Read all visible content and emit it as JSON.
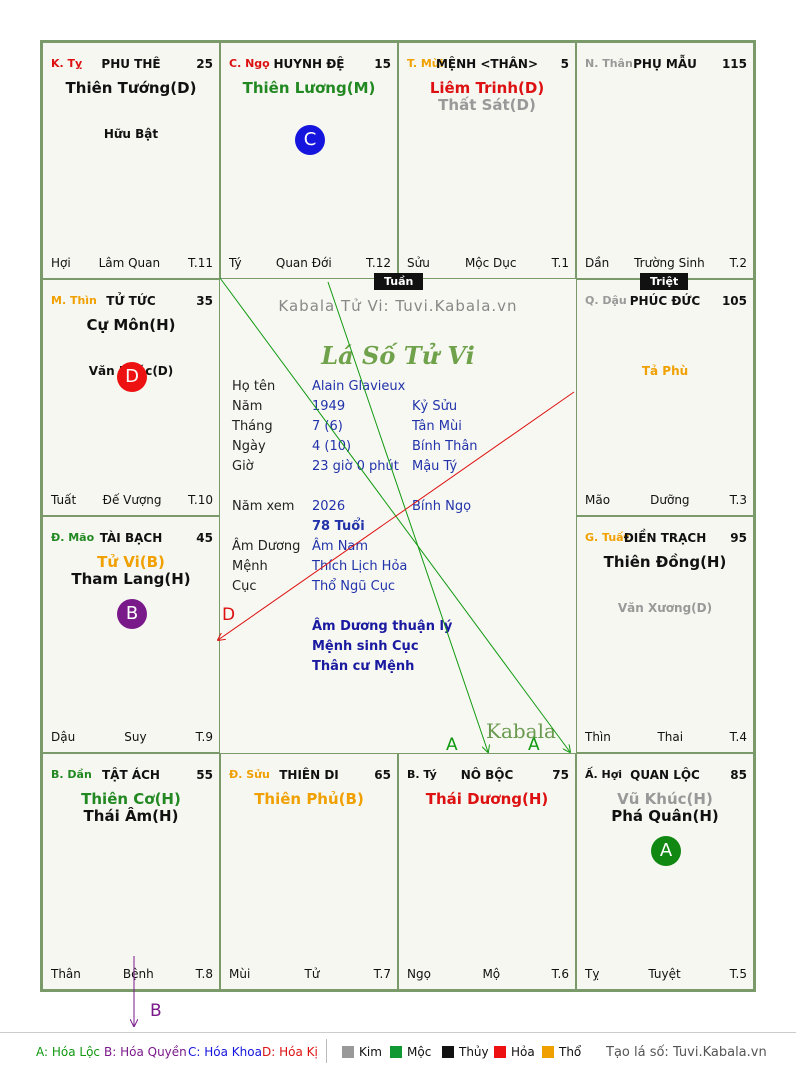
{
  "cells": [
    {
      "branch": "K. Tỵ",
      "branch_color": "#dd1111",
      "house": "PHU THÊ",
      "age": "25",
      "star1": "Thiên Tướng(D)",
      "star1_color": "#111111",
      "star2": "",
      "star2_color": "#111111",
      "minor": "Hữu Bật",
      "minor_color": "#111111",
      "left": "Hợi",
      "mid": "Lâm Quan",
      "right": "T.11",
      "badge": ""
    },
    {
      "branch": "C. Ngọ",
      "branch_color": "#dd1111",
      "house": "HUYNH ĐỆ",
      "age": "15",
      "star1": "Thiên Lương(M)",
      "star1_color": "#228822",
      "star2": "",
      "star2_color": "#111111",
      "minor": "",
      "minor_color": "#111111",
      "left": "Tý",
      "mid": "Quan Đới",
      "right": "T.12",
      "badge": "C",
      "badge_color": "#1515dd"
    },
    {
      "branch": "T. Mùi",
      "branch_color": "#f0a000",
      "house": "MỆNH <THÂN>",
      "age": "5",
      "star1": "Liêm Trinh(D)",
      "star1_color": "#dd1111",
      "star2": "Thất Sát(D)",
      "star2_color": "#999999",
      "minor": "",
      "minor_color": "#111111",
      "left": "Sửu",
      "mid": "Mộc Dục",
      "right": "T.1",
      "badge": ""
    },
    {
      "branch": "N. Thân",
      "branch_color": "#999999",
      "house": "PHỤ MẪU",
      "age": "115",
      "star1": "",
      "star1_color": "#111111",
      "star2": "",
      "star2_color": "#111111",
      "minor": "",
      "minor_color": "#111111",
      "left": "Dần",
      "mid": "Trường Sinh",
      "right": "T.2",
      "badge": ""
    },
    {
      "branch": "M. Thìn",
      "branch_color": "#f0a000",
      "house": "TỬ TỨC",
      "age": "35",
      "star1": "Cự Môn(H)",
      "star1_color": "#111111",
      "star2": "",
      "star2_color": "#111111",
      "minor": "Văn Khúc(D)",
      "minor_color": "#111111",
      "left": "Tuất",
      "mid": "Đế Vượng",
      "right": "T.10",
      "badge": "D",
      "badge_color": "#ee1111"
    },
    {
      "branch": "Q. Dậu",
      "branch_color": "#999999",
      "house": "PHÚC ĐỨC",
      "age": "105",
      "star1": "",
      "star1_color": "#111111",
      "star2": "",
      "star2_color": "#111111",
      "minor": "Tả Phù",
      "minor_color": "#f0a000",
      "left": "Mão",
      "mid": "Dưỡng",
      "right": "T.3",
      "badge": ""
    },
    {
      "branch": "Đ. Mão",
      "branch_color": "#228822",
      "house": "TÀI BẠCH",
      "age": "45",
      "star1": "Tử Vi(B)",
      "star1_color": "#f0a000",
      "star2": "Tham Lang(H)",
      "star2_color": "#111111",
      "minor": "",
      "minor_color": "#111111",
      "left": "Dậu",
      "mid": "Suy",
      "right": "T.9",
      "badge": "B",
      "badge_color": "#7a1a8a"
    },
    {
      "branch": "G. Tuất",
      "branch_color": "#f0a000",
      "house": "ĐIỀN TRẠCH",
      "age": "95",
      "star1": "Thiên Đồng(H)",
      "star1_color": "#111111",
      "star2": "",
      "star2_color": "#111111",
      "minor": "Văn Xương(D)",
      "minor_color": "#999999",
      "left": "Thìn",
      "mid": "Thai",
      "right": "T.4",
      "badge": ""
    },
    {
      "branch": "B. Dần",
      "branch_color": "#228822",
      "house": "TẬT ÁCH",
      "age": "55",
      "star1": "Thiên Cơ(H)",
      "star1_color": "#228822",
      "star2": "Thái Âm(H)",
      "star2_color": "#111111",
      "minor": "",
      "minor_color": "#111111",
      "left": "Thân",
      "mid": "Bệnh",
      "right": "T.8",
      "badge": ""
    },
    {
      "branch": "Đ. Sửu",
      "branch_color": "#f0a000",
      "house": "THIÊN DI",
      "age": "65",
      "star1": "Thiên Phủ(B)",
      "star1_color": "#f0a000",
      "star2": "",
      "star2_color": "#111111",
      "minor": "",
      "minor_color": "#111111",
      "left": "Mùi",
      "mid": "Tử",
      "right": "T.7",
      "badge": ""
    },
    {
      "branch": "B. Tý",
      "branch_color": "#111111",
      "house": "NÔ BỘC",
      "age": "75",
      "star1": "Thái Dương(H)",
      "star1_color": "#dd1111",
      "star2": "",
      "star2_color": "#111111",
      "minor": "",
      "minor_color": "#111111",
      "left": "Ngọ",
      "mid": "Mộ",
      "right": "T.6",
      "badge": ""
    },
    {
      "branch": "Ấ. Hợi",
      "branch_color": "#111111",
      "house": "QUAN LỘC",
      "age": "85",
      "star1": "Vũ Khúc(H)",
      "star1_color": "#999999",
      "star2": "Phá Quân(H)",
      "star2_color": "#111111",
      "minor": "",
      "minor_color": "#111111",
      "left": "Tỵ",
      "mid": "Tuyệt",
      "right": "T.5",
      "badge": "A",
      "badge_color": "#118811"
    }
  ],
  "tags": {
    "tuan": "Tuần",
    "triet": "Triệt"
  },
  "center": {
    "watermark": "Kabala Tử Vi: Tuvi.Kabala.vn",
    "title": "Lá Số Tử Vi",
    "rows": [
      {
        "k": "Họ tên",
        "v1": "Alain Glavieux",
        "v2": ""
      },
      {
        "k": "Năm",
        "v1": "1949",
        "v2": "Kỷ Sửu"
      },
      {
        "k": "Tháng",
        "v1": "7  (6)",
        "v2": "Tân Mùi"
      },
      {
        "k": "Ngày",
        "v1": "4  (10)",
        "v2": "Bính Thân"
      },
      {
        "k": "Giờ",
        "v1": "23 giờ 0 phút",
        "v2": "Mậu Tý"
      },
      {
        "k": "Năm xem",
        "v1": "2026",
        "v2": "Bính Ngọ"
      },
      {
        "k": "",
        "v1": "78 Tuổi",
        "v2": ""
      },
      {
        "k": "Âm Dương",
        "v1": "Âm Nam",
        "v2": ""
      },
      {
        "k": "Mệnh",
        "v1": "Thích Lịch Hỏa",
        "v2": ""
      },
      {
        "k": "Cục",
        "v1": "Thổ Ngũ Cục",
        "v2": ""
      }
    ],
    "notes": [
      "Âm Dương thuận lý",
      "Mệnh sinh Cục",
      "Thân cư Mệnh"
    ],
    "logo": "Kabala"
  },
  "arrow_labels": {
    "a1": "A",
    "a2": "A",
    "d": "D",
    "b": "B"
  },
  "legend": {
    "a": "A: Hóa Lộc",
    "b": "B: Hóa Quyền",
    "c": "C: Hóa Khoa",
    "d": "D: Hóa Kị",
    "kim": "Kim",
    "moc": "Mộc",
    "thuy": "Thủy",
    "hoa": "Hỏa",
    "tho": "Thổ",
    "site": "Tạo lá số: Tuvi.Kabala.vn",
    "colors": {
      "kim": "#999999",
      "moc": "#119933",
      "thuy": "#111111",
      "hoa": "#ee1111",
      "tho": "#f0a000"
    }
  }
}
